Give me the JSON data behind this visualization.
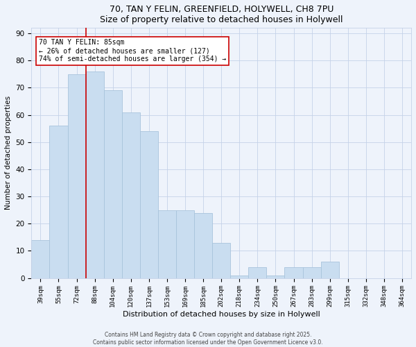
{
  "title1": "70, TAN Y FELIN, GREENFIELD, HOLYWELL, CH8 7PU",
  "title2": "Size of property relative to detached houses in Holywell",
  "xlabel": "Distribution of detached houses by size in Holywell",
  "ylabel": "Number of detached properties",
  "categories": [
    "39sqm",
    "55sqm",
    "72sqm",
    "88sqm",
    "104sqm",
    "120sqm",
    "137sqm",
    "153sqm",
    "169sqm",
    "185sqm",
    "202sqm",
    "218sqm",
    "234sqm",
    "250sqm",
    "267sqm",
    "283sqm",
    "299sqm",
    "315sqm",
    "332sqm",
    "348sqm",
    "364sqm"
  ],
  "values": [
    14,
    56,
    75,
    76,
    69,
    61,
    54,
    25,
    25,
    24,
    13,
    1,
    4,
    1,
    4,
    4,
    6,
    0,
    0,
    0,
    0
  ],
  "bar_color": "#c9ddf0",
  "bar_edge_color": "#a8c4dc",
  "vline_color": "#cc0000",
  "vline_index": 2.5,
  "annotation_text": "70 TAN Y FELIN: 85sqm\n← 26% of detached houses are smaller (127)\n74% of semi-detached houses are larger (354) →",
  "annotation_box_color": "#ffffff",
  "annotation_box_edge": "#cc0000",
  "ylim": [
    0,
    92
  ],
  "yticks": [
    0,
    10,
    20,
    30,
    40,
    50,
    60,
    70,
    80,
    90
  ],
  "footer": "Contains HM Land Registry data © Crown copyright and database right 2025.\nContains public sector information licensed under the Open Government Licence v3.0.",
  "bg_color": "#eef3fb",
  "grid_color": "#c5d2e8"
}
